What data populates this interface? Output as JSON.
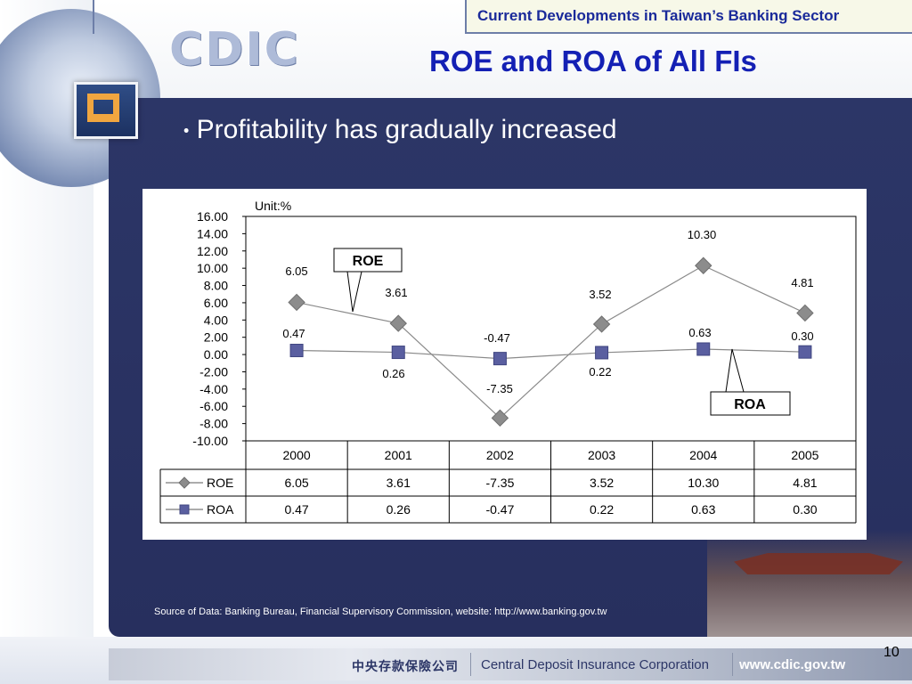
{
  "header": {
    "top_title": "Current Developments in Taiwan’s Banking Sector",
    "logo_text": "CDIC",
    "slide_title": "ROE and ROA of All FIs"
  },
  "body": {
    "bullet": "Profitability has gradually increased",
    "source": "Source of Data: Banking Bureau, Financial Supervisory Commission, website: http://www.banking.gov.tw"
  },
  "footer": {
    "chinese_name": "中央存款保險公司",
    "english_name": "Central Deposit Insurance Corporation",
    "website": "www.cdic.gov.tw",
    "page_number": "10"
  },
  "colors": {
    "navy_panel": "#2c3667",
    "title_blue": "#1420b4",
    "roe_marker": "#8c8c8c",
    "roa_marker": "#5a5fa0"
  },
  "chart_data": {
    "type": "line",
    "unit_label": "Unit:%",
    "categories": [
      "2000",
      "2001",
      "2002",
      "2003",
      "2004",
      "2005"
    ],
    "ylim": [
      -10,
      16
    ],
    "yticks": [
      "16.00",
      "14.00",
      "12.00",
      "10.00",
      "8.00",
      "6.00",
      "4.00",
      "2.00",
      "0.00",
      "-2.00",
      "-4.00",
      "-6.00",
      "-8.00",
      "-10.00"
    ],
    "series": [
      {
        "name": "ROE",
        "values": [
          6.05,
          3.61,
          -7.35,
          3.52,
          10.3,
          4.81
        ],
        "labels": [
          "6.05",
          "3.61",
          "-7.35",
          "3.52",
          "10.30",
          "4.81"
        ],
        "marker": "diamond"
      },
      {
        "name": "ROA",
        "values": [
          0.47,
          0.26,
          -0.47,
          0.22,
          0.63,
          0.3
        ],
        "labels": [
          "0.47",
          "0.26",
          "-0.47",
          "0.22",
          "0.63",
          "0.30"
        ],
        "marker": "square"
      }
    ],
    "callouts": [
      "ROE",
      "ROA"
    ],
    "data_table": true,
    "grid": false
  }
}
